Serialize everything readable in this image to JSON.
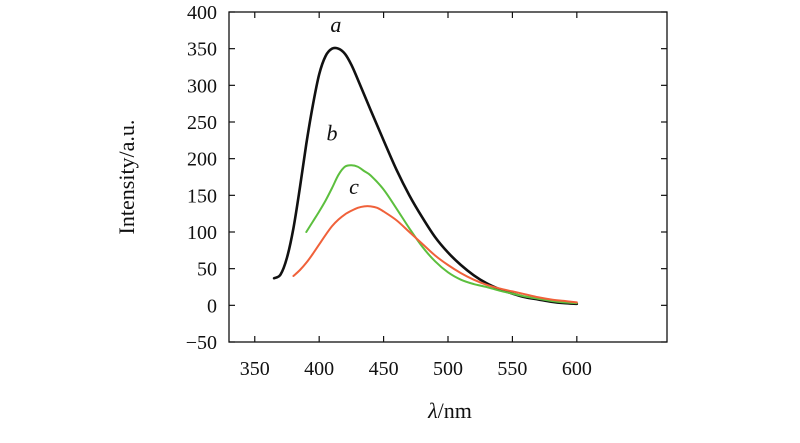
{
  "chart_data": {
    "type": "line",
    "title": "",
    "xlabel_symbol": "λ",
    "xlabel_unit": "/nm",
    "ylabel": "Intensity/a.u.",
    "xlim": [
      330,
      670
    ],
    "ylim": [
      -50,
      400
    ],
    "xticks": [
      350,
      400,
      450,
      500,
      550,
      600
    ],
    "yticks": [
      -50,
      0,
      50,
      100,
      150,
      200,
      250,
      300,
      350,
      400
    ],
    "grid": false,
    "legend": "none",
    "series": [
      {
        "name": "a",
        "color": "#111111",
        "label_at": [
          413,
          373
        ],
        "x": [
          365,
          370,
          375,
          380,
          385,
          390,
          395,
          400,
          405,
          410,
          415,
          420,
          425,
          430,
          440,
          450,
          460,
          470,
          480,
          490,
          500,
          510,
          520,
          530,
          540,
          550,
          560,
          570,
          580,
          590,
          600
        ],
        "y": [
          37,
          42,
          65,
          105,
          160,
          220,
          272,
          315,
          340,
          350,
          350,
          343,
          328,
          308,
          266,
          225,
          185,
          150,
          120,
          93,
          72,
          55,
          41,
          30,
          22,
          16,
          11,
          8,
          5,
          3,
          2
        ]
      },
      {
        "name": "b",
        "color": "#5cbf3e",
        "label_at": [
          410,
          225
        ],
        "x": [
          390,
          395,
          400,
          405,
          410,
          415,
          420,
          425,
          430,
          435,
          440,
          450,
          460,
          470,
          480,
          490,
          500,
          510,
          520,
          530,
          540,
          550,
          560,
          570,
          580,
          590,
          600
        ],
        "y": [
          100,
          114,
          128,
          143,
          160,
          178,
          189,
          191,
          189,
          183,
          177,
          158,
          132,
          105,
          80,
          60,
          45,
          35,
          29,
          25,
          20,
          16,
          12,
          9,
          6,
          4,
          3
        ]
      },
      {
        "name": "c",
        "color": "#f0613a",
        "label_at": [
          427,
          152
        ],
        "x": [
          380,
          385,
          390,
          395,
          400,
          405,
          410,
          415,
          420,
          425,
          430,
          435,
          440,
          445,
          450,
          460,
          470,
          480,
          490,
          500,
          510,
          520,
          530,
          540,
          550,
          560,
          570,
          580,
          590,
          600
        ],
        "y": [
          40,
          48,
          58,
          70,
          83,
          96,
          108,
          117,
          124,
          129,
          133,
          135,
          135,
          133,
          128,
          116,
          100,
          84,
          68,
          55,
          44,
          35,
          28,
          23,
          19,
          15,
          11,
          8,
          6,
          4
        ]
      }
    ]
  }
}
